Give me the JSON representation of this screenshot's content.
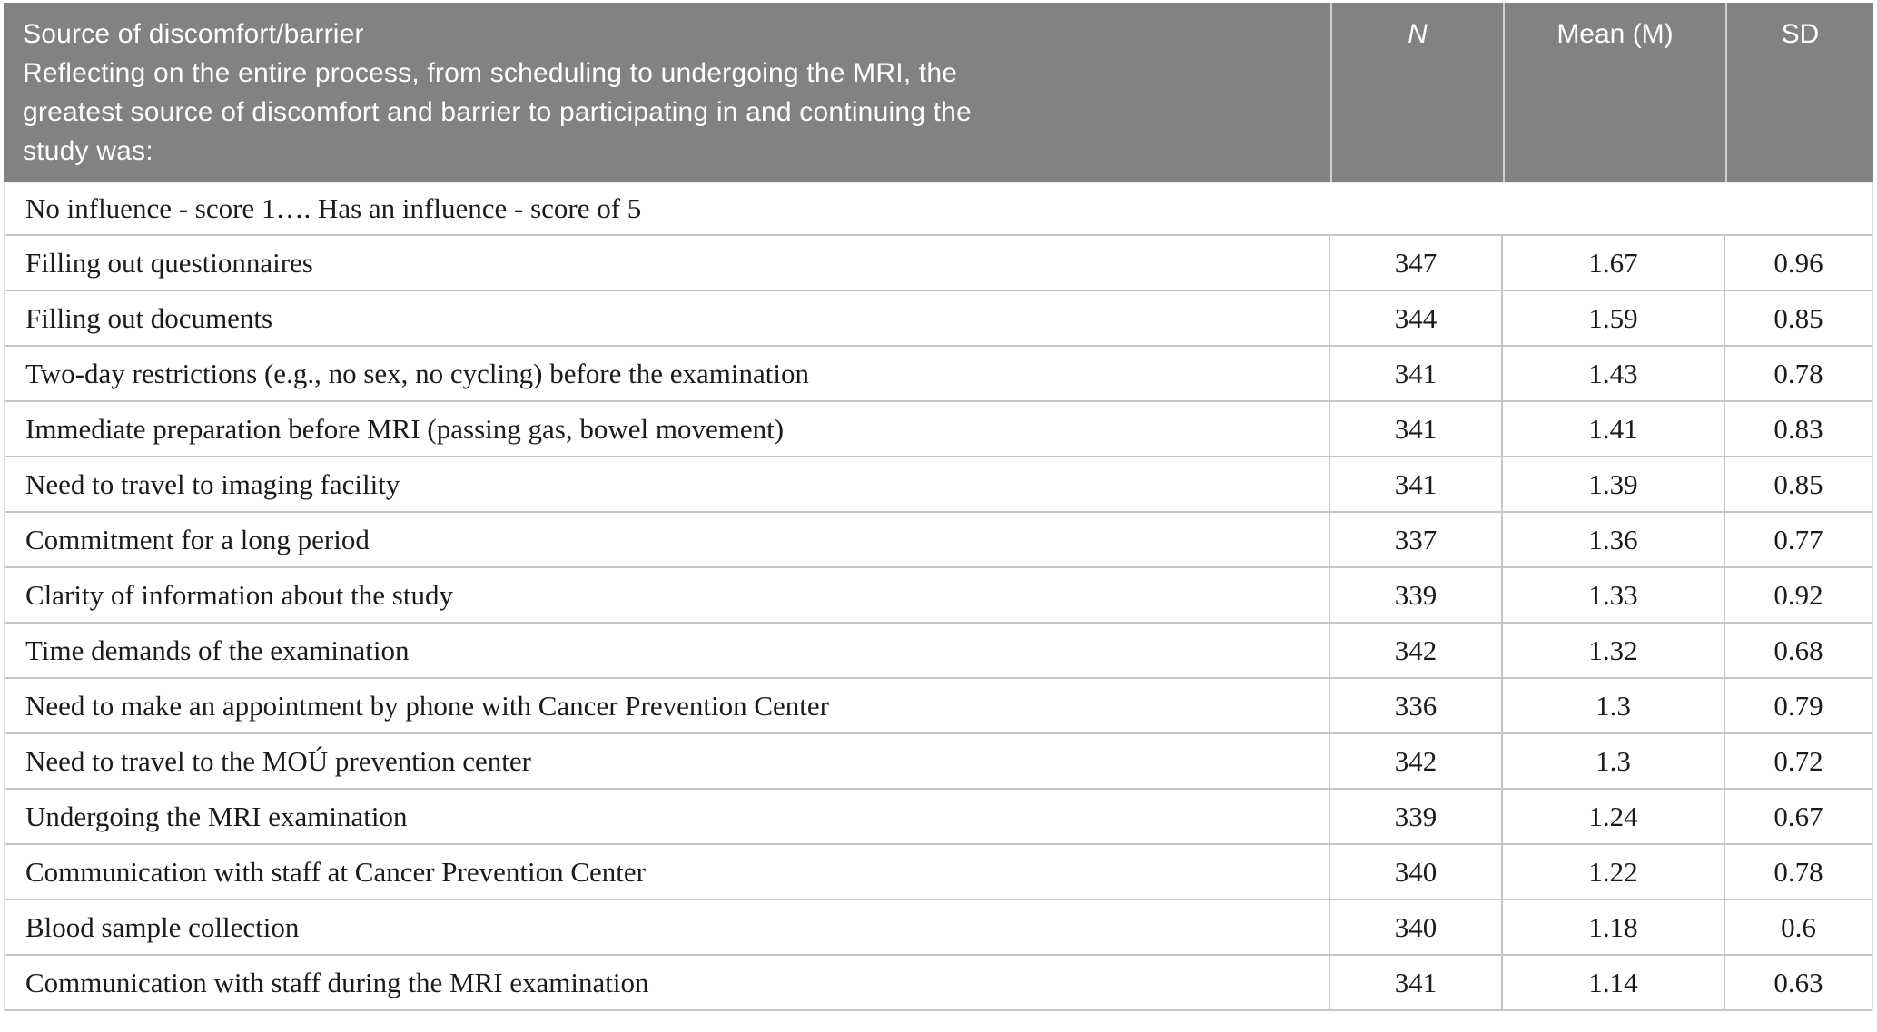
{
  "colors": {
    "header_bg": "#828282",
    "header_text": "#ffffff",
    "header_divider": "#cfcfcf",
    "body_border": "#c6c6c6",
    "body_text": "#1b1b1b"
  },
  "header": {
    "title": "Source of discomfort/barrier",
    "subtitle_lines": [
      "Reflecting on the entire process, from scheduling to undergoing the MRI, the",
      "greatest source of discomfort and barrier to participating in and continuing the",
      "study was:"
    ],
    "columns": [
      "N",
      "Mean (M)",
      "SD"
    ]
  },
  "table": {
    "scale_note": "No influence - score 1…. Has an influence - score of 5",
    "rows": [
      {
        "label": "Filling out questionnaires",
        "n": "347",
        "mean": "1.67",
        "sd": "0.96"
      },
      {
        "label": "Filling out documents",
        "n": "344",
        "mean": "1.59",
        "sd": "0.85"
      },
      {
        "label": "Two-day restrictions (e.g., no sex, no cycling) before the examination",
        "n": "341",
        "mean": "1.43",
        "sd": "0.78"
      },
      {
        "label": "Immediate preparation before MRI (passing gas, bowel movement)",
        "n": "341",
        "mean": "1.41",
        "sd": "0.83"
      },
      {
        "label": "Need to travel to imaging facility",
        "n": "341",
        "mean": "1.39",
        "sd": "0.85"
      },
      {
        "label": "Commitment for a long period",
        "n": "337",
        "mean": "1.36",
        "sd": "0.77"
      },
      {
        "label": "Clarity of information about the study",
        "n": "339",
        "mean": "1.33",
        "sd": "0.92"
      },
      {
        "label": "Time demands of the examination",
        "n": "342",
        "mean": "1.32",
        "sd": "0.68"
      },
      {
        "label": "Need to make an appointment by phone with Cancer Prevention Center",
        "n": "336",
        "mean": "1.3",
        "sd": "0.79"
      },
      {
        "label": "Need to travel to the MOÚ prevention center",
        "n": "342",
        "mean": "1.3",
        "sd": "0.72"
      },
      {
        "label": "Undergoing the MRI examination",
        "n": "339",
        "mean": "1.24",
        "sd": "0.67"
      },
      {
        "label": "Communication with staff at Cancer Prevention Center",
        "n": "340",
        "mean": "1.22",
        "sd": "0.78"
      },
      {
        "label": "Blood sample collection",
        "n": "340",
        "mean": "1.18",
        "sd": "0.6"
      },
      {
        "label": "Communication with staff during the MRI examination",
        "n": "341",
        "mean": "1.14",
        "sd": "0.63"
      }
    ]
  }
}
